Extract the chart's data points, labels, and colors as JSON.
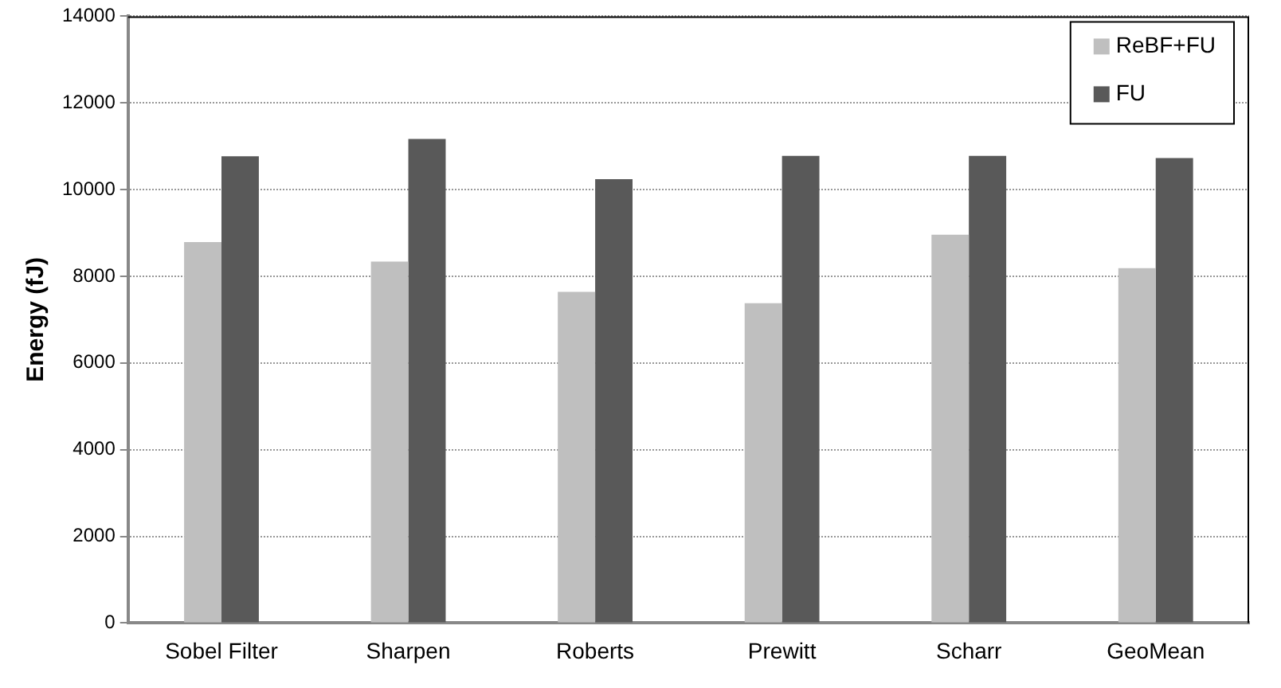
{
  "chart_data": {
    "type": "bar",
    "ylabel": "Energy (fJ)",
    "categories": [
      "Sobel Filter",
      "Sharpen",
      "Roberts",
      "Prewitt",
      "Scharr",
      "GeoMean"
    ],
    "series": [
      {
        "name": "ReBF+FU",
        "color": "#bfbfbf",
        "values": [
          8790,
          8340,
          7640,
          7380,
          8960,
          8190
        ]
      },
      {
        "name": "FU",
        "color": "#595959",
        "values": [
          10770,
          11170,
          10240,
          10780,
          10780,
          10730
        ]
      }
    ],
    "ylim": [
      0,
      14000
    ],
    "yticks": [
      0,
      2000,
      4000,
      6000,
      8000,
      10000,
      12000,
      14000
    ],
    "grid": "y",
    "legend": "top right"
  }
}
